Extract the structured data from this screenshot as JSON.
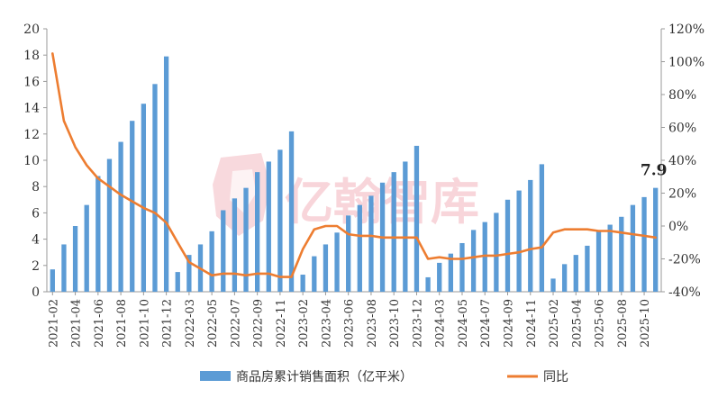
{
  "watermark": {
    "text": "亿翰智库"
  },
  "chart_data": {
    "type": "bar",
    "categories": [
      "2021-02",
      "2021-03",
      "2021-04",
      "2021-05",
      "2021-06",
      "2021-07",
      "2021-08",
      "2021-09",
      "2021-10",
      "2021-11",
      "2021-12",
      "2022-02",
      "2022-03",
      "2022-04",
      "2022-05",
      "2022-06",
      "2022-07",
      "2022-08",
      "2022-09",
      "2022-10",
      "2022-11",
      "2022-12",
      "2023-02",
      "2023-03",
      "2023-04",
      "2023-05",
      "2023-06",
      "2023-07",
      "2023-08",
      "2023-09",
      "2023-10",
      "2023-11",
      "2023-12",
      "2024-02",
      "2024-03",
      "2024-04",
      "2024-05",
      "2024-06",
      "2024-07",
      "2024-08",
      "2024-09",
      "2024-10",
      "2024-11",
      "2024-12",
      "2025-02",
      "2025-03",
      "2025-04",
      "2025-05",
      "2025-06",
      "2025-07",
      "2025-08",
      "2025-09",
      "2025-10",
      "2025-11"
    ],
    "x_tick_labels": [
      "2021-02",
      "2021-04",
      "2021-06",
      "2021-08",
      "2021-10",
      "2021-12",
      "2022-03",
      "2022-05",
      "2022-07",
      "2022-09",
      "2022-11",
      "2023-02",
      "2023-04",
      "2023-06",
      "2023-08",
      "2023-10",
      "2023-12",
      "2024-03",
      "2024-05",
      "2024-07",
      "2024-09",
      "2024-11",
      "2025-02",
      "2025-04",
      "2025-06",
      "2025-08",
      "2025-10"
    ],
    "series": [
      {
        "name": "商品房累计销售面积（亿平米）",
        "axis": "left",
        "type": "bar",
        "color": "#5b9bd5",
        "values": [
          1.7,
          3.6,
          5.0,
          6.6,
          8.8,
          10.1,
          11.4,
          13.0,
          14.3,
          15.8,
          17.9,
          1.5,
          2.8,
          3.6,
          4.6,
          6.2,
          7.1,
          7.9,
          9.1,
          9.9,
          10.8,
          12.2,
          1.3,
          2.7,
          3.6,
          4.5,
          5.8,
          6.6,
          7.3,
          8.3,
          9.1,
          9.9,
          11.1,
          1.1,
          2.2,
          2.9,
          3.7,
          4.7,
          5.3,
          6.0,
          7.0,
          7.7,
          8.5,
          9.7,
          1.0,
          2.1,
          2.8,
          3.5,
          4.6,
          5.1,
          5.7,
          6.6,
          7.2,
          7.9
        ]
      },
      {
        "name": "同比",
        "axis": "right",
        "type": "line",
        "color": "#ed7d31",
        "values": [
          105,
          64,
          48,
          37,
          29,
          24,
          19,
          15,
          11,
          8,
          2,
          -10,
          -22,
          -26,
          -30,
          -29,
          -29,
          -30,
          -29,
          -29,
          -31,
          -31,
          -14,
          -2,
          0,
          0,
          -5,
          -6,
          -6,
          -7,
          -7,
          -7,
          -7,
          -20,
          -19,
          -20,
          -20,
          -19,
          -18,
          -18,
          -17,
          -16,
          -14,
          -13,
          -4,
          -2,
          -2,
          -2,
          -3,
          -3,
          -4,
          -5,
          -6,
          -7
        ]
      }
    ],
    "y_left": {
      "min": 0,
      "max": 20,
      "step": 2,
      "tick_labels": [
        "0",
        "2",
        "4",
        "6",
        "8",
        "10",
        "12",
        "14",
        "16",
        "18",
        "20"
      ]
    },
    "y_right": {
      "min": -40,
      "max": 120,
      "step": 20,
      "tick_labels": [
        "-40%",
        "-20%",
        "0%",
        "20%",
        "40%",
        "60%",
        "80%",
        "100%",
        "120%"
      ]
    },
    "annotations": [
      {
        "text": "7.9",
        "category": "2025-11",
        "series": 0
      }
    ],
    "grid": false,
    "legend": "bottom"
  }
}
